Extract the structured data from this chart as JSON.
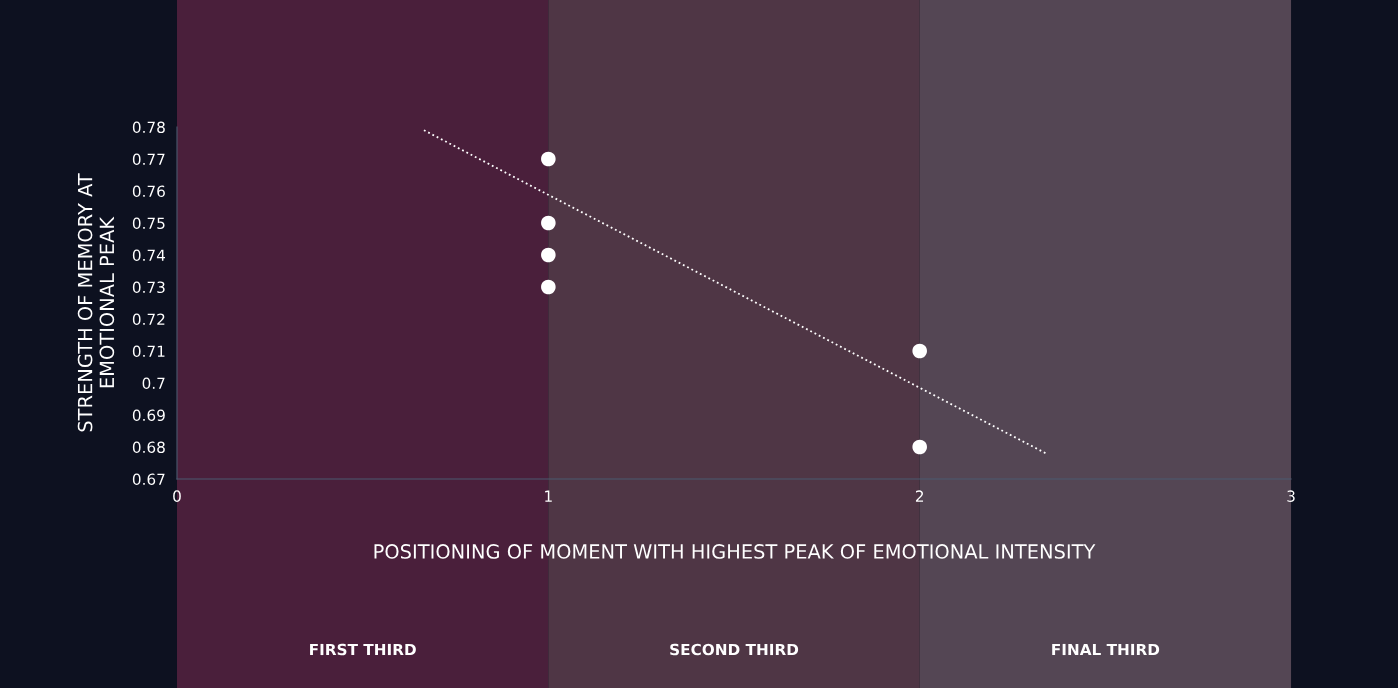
{
  "chart_data": {
    "type": "scatter",
    "xlabel": "POSITIONING OF MOMENT WITH HIGHEST PEAK OF EMOTIONAL INTENSITY",
    "ylabel": "STRENGTH OF MEMORY AT\nEMOTIONAL PEAK",
    "series": [
      {
        "color": "#ffffff",
        "marker": "circle",
        "x": [
          1,
          1,
          1,
          1,
          2,
          2
        ],
        "values": [
          0.77,
          0.75,
          0.74,
          0.73,
          0.71,
          0.68
        ]
      },
      {
        "type": "line",
        "color": "#ffffff",
        "x": [
          0.665,
          2.34
        ],
        "values": [
          0.779,
          0.678
        ],
        "line_style": "dotted"
      }
    ],
    "xlim": [
      0,
      3
    ],
    "xticks": [
      0,
      1,
      2,
      3
    ],
    "ylim": [
      0.67,
      0.78
    ],
    "yticks": [
      0.67,
      0.68,
      0.69,
      0.7,
      0.71,
      0.72,
      0.73,
      0.74,
      0.75,
      0.76,
      0.77,
      0.78
    ],
    "bands": [
      {
        "axis": "x",
        "from": 0,
        "to": 1,
        "label": "FIRST THIRD",
        "color": "#4a1f3b"
      },
      {
        "axis": "x",
        "from": 1,
        "to": 2,
        "label": "SECOND THIRD",
        "color": "#4f3645"
      },
      {
        "axis": "x",
        "from": 2,
        "to": 3,
        "label": "FINAL THIRD",
        "color": "#544654"
      }
    ],
    "grid": false
  }
}
